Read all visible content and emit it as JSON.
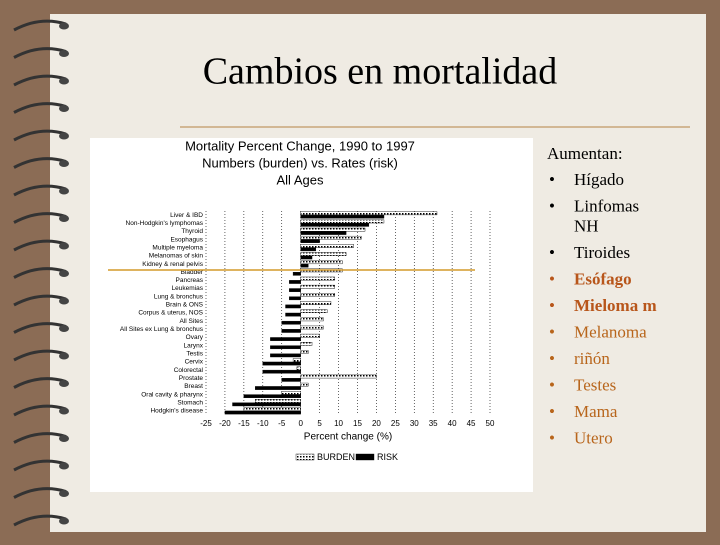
{
  "title": "Cambios en mortalidad",
  "chart": {
    "type": "bar",
    "orientation": "horizontal",
    "title_lines": [
      "Mortality Percent Change, 1990 to 1997",
      "Numbers (burden) vs. Rates (risk)",
      "All Ages"
    ],
    "categories": [
      "Liver & IBD",
      "Non-Hodgkin's lymphomas",
      "Thyroid",
      "Esophagus",
      "Multiple myeloma",
      "Melanomas of skin",
      "Kidney & renal pelvis",
      "Bladder",
      "Pancreas",
      "Leukemias",
      "Lung & bronchus",
      "Brain & ONS",
      "Corpus & uterus, NOS",
      "All Sites",
      "All Sites ex Lung & bronchus",
      "Ovary",
      "Larynx",
      "Testis",
      "Cervix",
      "Colorectal",
      "Prostate",
      "Breast",
      "Oral cavity & pharynx",
      "Stomach",
      "Hodgkin's disease"
    ],
    "series": [
      {
        "name": "BURDEN",
        "color": "#ffffff",
        "values": [
          36,
          22,
          17,
          16,
          14,
          12,
          11,
          11,
          9,
          9,
          9,
          8,
          7,
          6,
          6,
          5,
          3,
          2,
          -2,
          -1,
          20,
          2,
          -5,
          -12,
          -15
        ]
      },
      {
        "name": "RISK",
        "color": "#000000",
        "values": [
          22,
          18,
          12,
          5,
          4,
          3,
          2,
          -2,
          -3,
          -3,
          -3,
          -4,
          -4,
          -5,
          -5,
          -8,
          -8,
          -8,
          -10,
          -10,
          -5,
          -12,
          -15,
          -18,
          -20
        ]
      }
    ],
    "xlim": [
      -25,
      50
    ],
    "xticks": [
      -25,
      -20,
      -15,
      -10,
      -5,
      0,
      5,
      10,
      15,
      20,
      25,
      30,
      35,
      40,
      45,
      50
    ],
    "xlabel": "Percent change (%)"
  },
  "list": {
    "heading": "Aumentan:",
    "items": [
      "Hígado",
      "Linfomas NH",
      "Tiroides",
      "Esófago",
      "Mieloma m",
      "Melanoma",
      "riñón",
      "Testes",
      "Mama",
      "Utero"
    ],
    "colors": [
      "#000000",
      "#000000",
      "#000000",
      "#b8561b",
      "#b8561b",
      "#b8651b",
      "#b8651b",
      "#b8651b",
      "#b8651b",
      "#b8651b"
    ]
  }
}
